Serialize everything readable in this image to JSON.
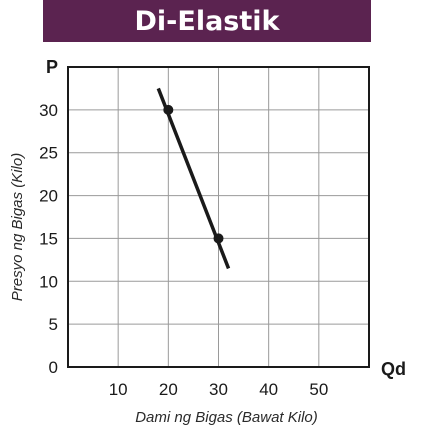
{
  "title": "Di-Elastik",
  "colors": {
    "banner": "#5b2350",
    "grid": "#9a9a9a",
    "axis": "#1a1a1a",
    "line": "#1a1a1a"
  },
  "chart_data": {
    "type": "line",
    "title": "Di-Elastik",
    "xlabel": "Dami ng Bigas (Bawat Kilo)",
    "ylabel": "Presyo ng Bigas (Kilo)",
    "x_axis_end_label": "Qd",
    "y_axis_end_label": "P",
    "x_ticks": [
      "10",
      "20",
      "30",
      "40",
      "50"
    ],
    "y_ticks": [
      "0",
      "5",
      "10",
      "15",
      "20",
      "25",
      "30"
    ],
    "xlim": [
      0,
      60
    ],
    "ylim": [
      0,
      35
    ],
    "grid": true,
    "series": [
      {
        "line_x": [
          18,
          32
        ],
        "line_y": [
          32.5,
          11.5
        ],
        "points": [
          {
            "x": 20,
            "y": 30
          },
          {
            "x": 30,
            "y": 15
          }
        ]
      }
    ]
  }
}
